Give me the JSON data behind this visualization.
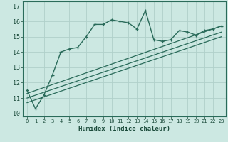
{
  "title": "",
  "xlabel": "Humidex (Indice chaleur)",
  "xlim": [
    -0.5,
    23.5
  ],
  "ylim": [
    9.8,
    17.3
  ],
  "xticks": [
    0,
    1,
    2,
    3,
    4,
    5,
    6,
    7,
    8,
    9,
    10,
    11,
    12,
    13,
    14,
    15,
    16,
    17,
    18,
    19,
    20,
    21,
    22,
    23
  ],
  "yticks": [
    10,
    11,
    12,
    13,
    14,
    15,
    16,
    17
  ],
  "bg_color": "#cce8e2",
  "grid_color": "#b0d0ca",
  "line_color": "#2a6b5a",
  "line1_x": [
    0,
    1,
    2,
    3,
    4,
    5,
    6,
    7,
    8,
    9,
    10,
    11,
    12,
    13,
    14,
    15,
    16,
    17,
    18,
    19,
    20,
    21,
    22,
    23
  ],
  "line1_y": [
    11.5,
    10.3,
    11.2,
    12.5,
    14.0,
    14.2,
    14.3,
    15.0,
    15.8,
    15.8,
    16.1,
    16.0,
    15.9,
    15.5,
    16.7,
    14.8,
    14.7,
    14.8,
    15.4,
    15.3,
    15.1,
    15.4,
    15.5,
    15.7
  ],
  "line2_x": [
    0,
    23
  ],
  "line2_y": [
    11.3,
    15.7
  ],
  "line3_x": [
    0,
    23
  ],
  "line3_y": [
    11.0,
    15.3
  ],
  "line4_x": [
    0,
    23
  ],
  "line4_y": [
    10.7,
    15.0
  ]
}
